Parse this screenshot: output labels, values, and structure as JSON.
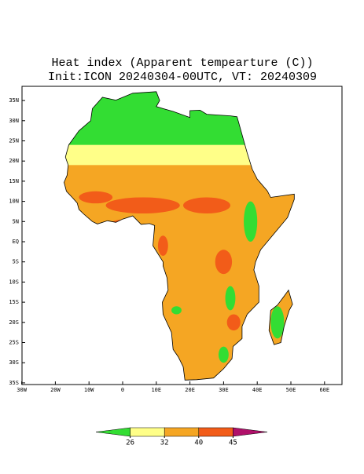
{
  "header": {
    "title": "Heat index (Apparent tempearture (C))",
    "subtitle": "Init:ICON 20240304-00UTC, VT: 20240309"
  },
  "map": {
    "lat_ticks": [
      {
        "value": 35,
        "label": "35N"
      },
      {
        "value": 30,
        "label": "30N"
      },
      {
        "value": 25,
        "label": "25N"
      },
      {
        "value": 20,
        "label": "20N"
      },
      {
        "value": 15,
        "label": "15N"
      },
      {
        "value": 10,
        "label": "10N"
      },
      {
        "value": 5,
        "label": "5N"
      },
      {
        "value": 0,
        "label": "EQ"
      },
      {
        "value": -5,
        "label": "5S"
      },
      {
        "value": -10,
        "label": "10S"
      },
      {
        "value": -15,
        "label": "15S"
      },
      {
        "value": -20,
        "label": "20S"
      },
      {
        "value": -25,
        "label": "25S"
      },
      {
        "value": -30,
        "label": "30S"
      },
      {
        "value": -35,
        "label": "35S"
      }
    ],
    "lon_ticks": [
      {
        "value": -30,
        "label": "30W"
      },
      {
        "value": -20,
        "label": "20W"
      },
      {
        "value": -10,
        "label": "10W"
      },
      0,
      {
        "value": 10,
        "label": "10E"
      },
      {
        "value": 20,
        "label": "20E"
      },
      {
        "value": 30,
        "label": "30E"
      },
      {
        "value": 40,
        "label": "40E"
      },
      {
        "value": 50,
        "label": "50E"
      },
      {
        "value": 60,
        "label": "60E"
      }
    ]
  },
  "colorbar": {
    "levels": [
      26,
      32,
      40,
      45
    ],
    "colors": [
      "#33dd33",
      "#ffff88",
      "#f5a623",
      "#f25c19",
      "#b0106a"
    ]
  }
}
